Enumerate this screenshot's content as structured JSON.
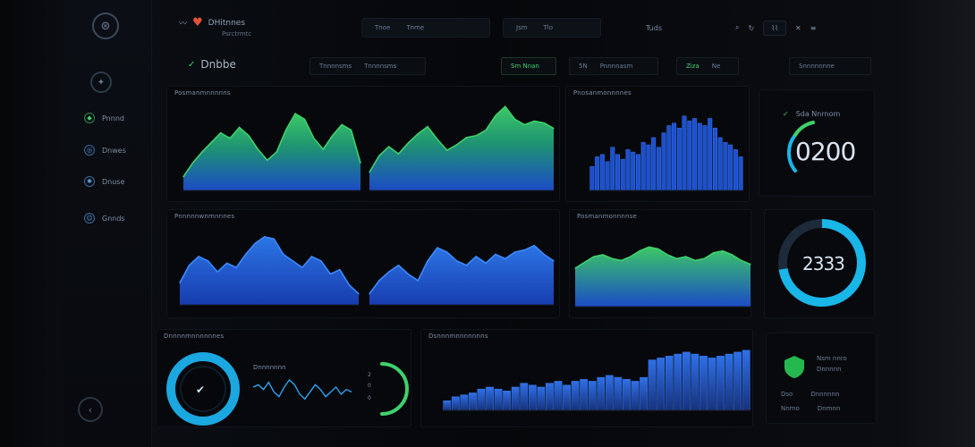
{
  "app": {
    "brand_name": "DHitnnes",
    "brand_sub": "Psrctrmtc",
    "page_title": "Dnbbe"
  },
  "topbar": {
    "group1": [
      "Tnoe",
      "Tnme"
    ],
    "group2": [
      "Jsm",
      "Tlo"
    ],
    "center_btn": "Tuds",
    "right_icons": [
      "search-icon",
      "refresh-icon",
      "chart-icon",
      "close-icon",
      "menu-icon"
    ]
  },
  "subbar": {
    "filter1": [
      "Tnnnnsms",
      "Tnnnnsms"
    ],
    "filter2": "Sm Nnan",
    "filter3": [
      "5N",
      "Pnnnnasm"
    ],
    "filter4": [
      "Ziza",
      "Ne"
    ],
    "filter5": "Snnnnnnne"
  },
  "sidebar": {
    "items": [
      {
        "label": "Pnnnd",
        "icon": "shield-icon"
      },
      {
        "label": "Dnwes",
        "icon": "globe-icon"
      },
      {
        "label": "Dnuse",
        "icon": "gear-icon"
      },
      {
        "label": "Gnnds",
        "icon": "user-icon"
      }
    ]
  },
  "panels": {
    "p1": {
      "title": "Posmanmnnnnns"
    },
    "p2": {
      "title": "Pnosanmonnnnes"
    },
    "p3": {
      "title": "Pnnnnnwnmnnnes"
    },
    "p4": {
      "title": "Posmanmonnnnse"
    },
    "p5": {
      "title": "Dnnnnmnnnnnnes"
    },
    "p6": {
      "title": "Dsnnnmnnnnnnns"
    },
    "p6_sub": "Dnnnnnnn"
  },
  "kpis": {
    "k1": {
      "label": "Sda Nnrnom",
      "value": "0200"
    },
    "k2": {
      "value": "2333"
    },
    "k3": {
      "legend": [
        [
          "Nsm nnro",
          "Dnnnnn"
        ],
        [
          "Dso",
          "Dnnnnnn"
        ],
        [
          "Nnmo",
          "Dnmnn"
        ]
      ]
    }
  },
  "colors": {
    "accent_green": "#3fd16b",
    "accent_blue": "#1e5bd6",
    "accent_cyan": "#19b6e8",
    "background": "#06080c"
  },
  "chart_data": [
    {
      "type": "area",
      "x": [
        0,
        1,
        2,
        3,
        4,
        5,
        6,
        7,
        8,
        9,
        10,
        11,
        12,
        13,
        14,
        15,
        16,
        17,
        18,
        19
      ],
      "series": [
        {
          "values": [
            10,
            20,
            28,
            35,
            42,
            38,
            46,
            40,
            30,
            22,
            28,
            44,
            56,
            52,
            38,
            30,
            40,
            48,
            44,
            20
          ]
        }
      ],
      "xlabel": "",
      "ylabel": "",
      "ylim": [
        0,
        60
      ]
    },
    {
      "type": "area",
      "x": [
        0,
        1,
        2,
        3,
        4,
        5,
        6,
        7,
        8,
        9,
        10,
        11,
        12,
        13,
        14,
        15,
        16,
        17,
        18,
        19
      ],
      "series": [
        {
          "values": [
            20,
            38,
            48,
            40,
            52,
            62,
            70,
            56,
            44,
            50,
            58,
            60,
            66,
            82,
            92,
            78,
            72,
            76,
            74,
            68
          ]
        }
      ],
      "xlabel": "",
      "ylabel": "",
      "ylim": [
        0,
        100
      ]
    },
    {
      "type": "bar",
      "x": [
        0,
        1,
        2,
        3,
        4,
        5,
        6,
        7,
        8,
        9,
        10,
        11,
        12,
        13,
        14,
        15,
        16,
        17,
        18,
        19,
        20,
        21,
        22,
        23,
        24,
        25,
        26,
        27,
        28,
        29
      ],
      "series": [
        {
          "values": [
            20,
            28,
            30,
            24,
            36,
            30,
            26,
            34,
            32,
            30,
            40,
            38,
            44,
            36,
            48,
            54,
            56,
            52,
            62,
            58,
            60,
            56,
            54,
            60,
            52,
            44,
            40,
            38,
            34,
            28
          ]
        }
      ],
      "xlabel": "",
      "ylabel": "",
      "ylim": [
        0,
        70
      ]
    },
    {
      "type": "area",
      "x": [
        0,
        1,
        2,
        3,
        4,
        5,
        6,
        7,
        8,
        9,
        10,
        11,
        12,
        13,
        14,
        15,
        16,
        17,
        18,
        19
      ],
      "series": [
        {
          "values": [
            20,
            36,
            44,
            40,
            30,
            38,
            34,
            46,
            56,
            62,
            60,
            46,
            40,
            34,
            44,
            40,
            28,
            32,
            18,
            10
          ]
        }
      ],
      "xlabel": "",
      "ylabel": "",
      "ylim": [
        0,
        70
      ]
    },
    {
      "type": "area",
      "x": [
        0,
        1,
        2,
        3,
        4,
        5,
        6,
        7,
        8,
        9,
        10,
        11,
        12,
        13,
        14,
        15,
        16,
        17,
        18,
        19
      ],
      "series": [
        {
          "values": [
            10,
            22,
            30,
            36,
            28,
            22,
            40,
            52,
            48,
            40,
            36,
            44,
            38,
            46,
            42,
            48,
            50,
            54,
            46,
            40
          ]
        }
      ],
      "xlabel": "",
      "ylabel": "",
      "ylim": [
        0,
        70
      ]
    },
    {
      "type": "area",
      "x": [
        0,
        1,
        2,
        3,
        4,
        5,
        6,
        7,
        8,
        9,
        10,
        11,
        12,
        13,
        14,
        15,
        16,
        17,
        18,
        19
      ],
      "series": [
        {
          "values": [
            40,
            46,
            52,
            54,
            50,
            48,
            52,
            58,
            62,
            60,
            54,
            50,
            52,
            48,
            50,
            56,
            58,
            54,
            48,
            44
          ]
        }
      ],
      "xlabel": "",
      "ylabel": "",
      "ylim": [
        0,
        80
      ]
    },
    {
      "type": "bar",
      "x": [
        0,
        1,
        2,
        3,
        4,
        5,
        6,
        7,
        8,
        9,
        10,
        11,
        12,
        13,
        14,
        15,
        16,
        17,
        18,
        19,
        20,
        21,
        22,
        23,
        24,
        25,
        26,
        27,
        28,
        29,
        30,
        31,
        32,
        33,
        34,
        35
      ],
      "series": [
        {
          "values": [
            10,
            14,
            16,
            18,
            22,
            24,
            22,
            20,
            24,
            28,
            26,
            24,
            28,
            30,
            26,
            30,
            32,
            30,
            34,
            36,
            34,
            32,
            30,
            34,
            52,
            54,
            56,
            58,
            60,
            58,
            56,
            54,
            56,
            58,
            60,
            62
          ]
        }
      ],
      "xlabel": "",
      "ylabel": "",
      "ylim": [
        0,
        70
      ]
    },
    {
      "type": "line",
      "x": [
        0,
        1,
        2,
        3,
        4,
        5,
        6,
        7,
        8,
        9,
        10,
        11,
        12,
        13,
        14,
        15,
        16,
        17,
        18,
        19
      ],
      "series": [
        {
          "values": [
            18,
            20,
            16,
            22,
            14,
            10,
            18,
            24,
            20,
            12,
            8,
            14,
            20,
            16,
            10,
            14,
            18,
            12,
            16,
            14
          ]
        }
      ],
      "xlabel": "",
      "ylabel": "",
      "ylim": [
        0,
        30
      ]
    }
  ]
}
